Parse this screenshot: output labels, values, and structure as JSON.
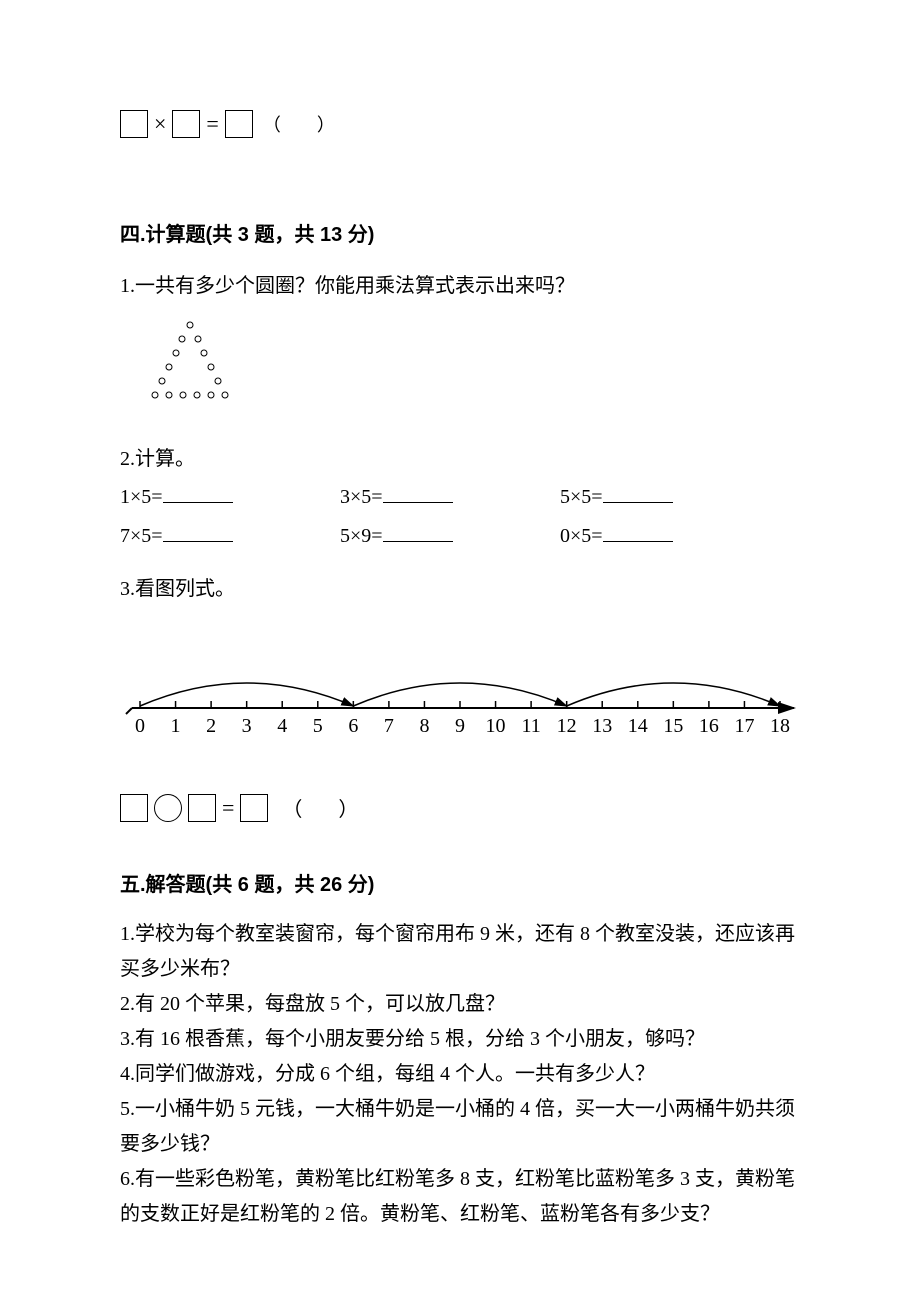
{
  "equation_top": {
    "op": "×",
    "eq": "=",
    "paren_open": "（",
    "paren_close": "）"
  },
  "section4": {
    "heading": "四.计算题(共 3 题，共 13 分)",
    "q1": "1.一共有多少个圆圈？你能用乘法算式表示出来吗？",
    "triangle": {
      "rows": [
        1,
        2,
        2,
        2,
        2,
        6
      ],
      "circle_color": "#000000",
      "circle_radius": 3
    },
    "q2_label": "2.计算。",
    "calc": {
      "row1": [
        {
          "expr": "1×5="
        },
        {
          "expr": "3×5="
        },
        {
          "expr": "5×5="
        }
      ],
      "row2": [
        {
          "expr": "7×5="
        },
        {
          "expr": "5×9="
        },
        {
          "expr": "0×5="
        }
      ]
    },
    "q3_label": "3.看图列式。",
    "number_line": {
      "min": 0,
      "max": 18,
      "labels": [
        "0",
        "1",
        "2",
        "3",
        "4",
        "5",
        "6",
        "7",
        "8",
        "9",
        "10",
        "11",
        "12",
        "13",
        "14",
        "15",
        "16",
        "17",
        "18"
      ],
      "arcs": [
        {
          "from": 0,
          "to": 6
        },
        {
          "from": 6,
          "to": 12
        },
        {
          "from": 12,
          "to": 18
        }
      ],
      "tick_fontsize": 20,
      "line_color": "#000000"
    },
    "equation2": {
      "eq": "=",
      "paren_open": "（",
      "paren_close": "）"
    }
  },
  "section5": {
    "heading": "五.解答题(共 6 题，共 26 分)",
    "q1": "1.学校为每个教室装窗帘，每个窗帘用布 9 米，还有 8 个教室没装，还应该再买多少米布？",
    "q2": "2.有 20 个苹果，每盘放 5 个，可以放几盘？",
    "q3": "3.有 16 根香蕉，每个小朋友要分给 5 根，分给 3 个小朋友，够吗？",
    "q4": "4.同学们做游戏，分成 6 个组，每组 4 个人。一共有多少人？",
    "q5": "5.一小桶牛奶 5 元钱，一大桶牛奶是一小桶的 4 倍，买一大一小两桶牛奶共须要多少钱？",
    "q6": "6.有一些彩色粉笔，黄粉笔比红粉笔多 8 支，红粉笔比蓝粉笔多 3 支，黄粉笔的支数正好是红粉笔的 2 倍。黄粉笔、红粉笔、蓝粉笔各有多少支？"
  },
  "colors": {
    "background": "#ffffff",
    "text": "#000000"
  }
}
